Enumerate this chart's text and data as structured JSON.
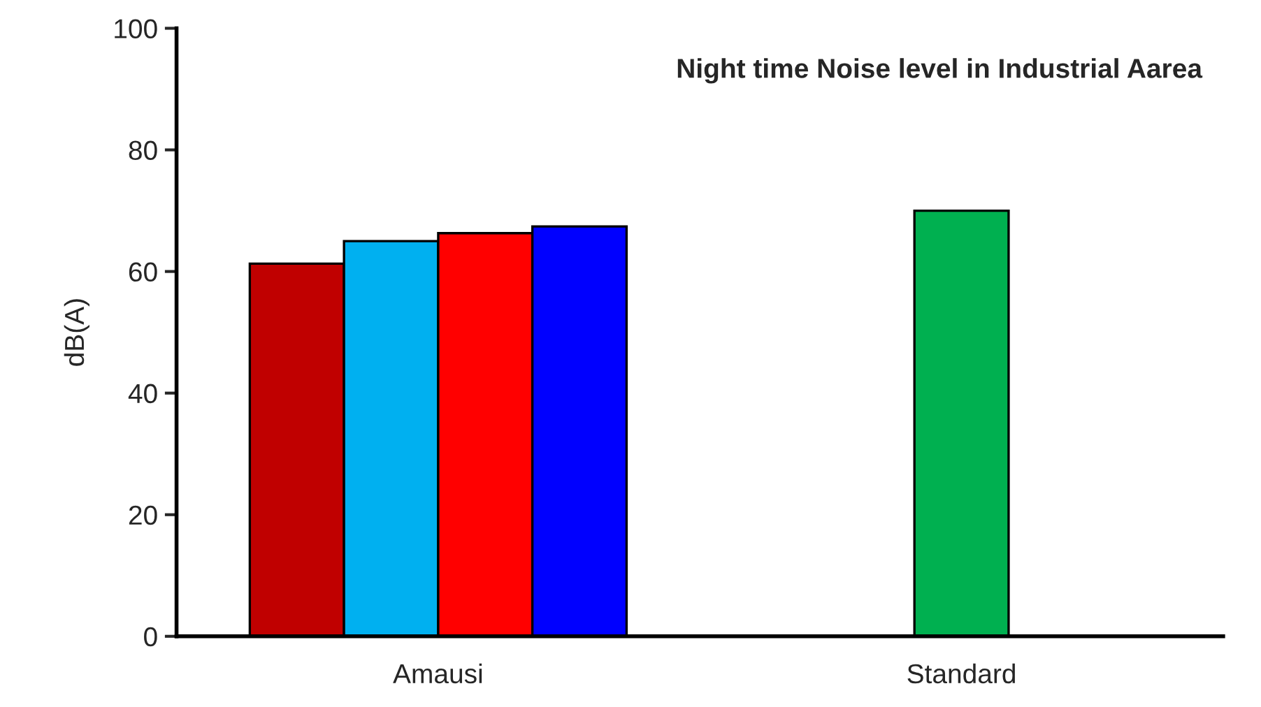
{
  "chart_data": {
    "type": "bar",
    "title": "Night time Noise level in Industrial Aarea",
    "ylabel": "dB(A)",
    "categories": [
      "Amausi",
      "Standard"
    ],
    "series": [
      {
        "color": "#c00000",
        "values": [
          61.3,
          null
        ]
      },
      {
        "color": "#00b0f0",
        "values": [
          65.0,
          null
        ]
      },
      {
        "color": "#ff0000",
        "values": [
          66.3,
          null
        ]
      },
      {
        "color": "#0000ff",
        "values": [
          67.4,
          null
        ]
      },
      {
        "color": "#00b050",
        "values": [
          null,
          70.0
        ]
      }
    ],
    "ylim": [
      0,
      100
    ],
    "yticks": [
      0,
      20,
      40,
      60,
      80,
      100
    ],
    "grid": false,
    "legend": false
  }
}
